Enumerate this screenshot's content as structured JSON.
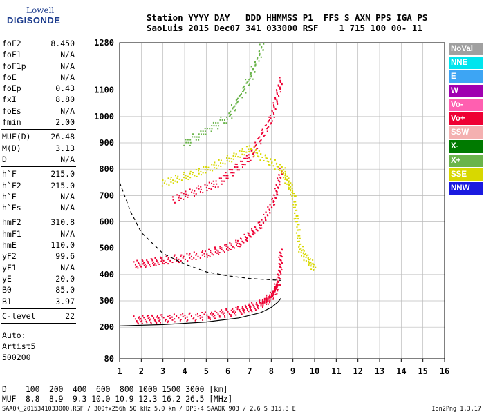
{
  "logo": {
    "line1": "Lowell",
    "line2": "DIGISONDE"
  },
  "header": {
    "line1": "Station YYYY DAY   DDD HHMMSS P1  FFS S AXN PPS IGA PS",
    "line2": "SaoLuis 2015 Dec07 341 033000 RSF    1 715 100 00- 11"
  },
  "params": [
    {
      "label": "foF2",
      "value": "8.450"
    },
    {
      "label": "foF1",
      "value": "N/A"
    },
    {
      "label": "foF1p",
      "value": "N/A"
    },
    {
      "label": "foE",
      "value": "N/A"
    },
    {
      "label": "foEp",
      "value": "0.43"
    },
    {
      "label": "fxI",
      "value": "8.80"
    },
    {
      "label": "foEs",
      "value": "N/A"
    },
    {
      "label": "fmin",
      "value": "2.00"
    },
    {
      "sep": true
    },
    {
      "label": "MUF(D)",
      "value": "26.48"
    },
    {
      "label": "M(D)",
      "value": "3.13"
    },
    {
      "label": "D",
      "value": "N/A"
    },
    {
      "sep": true
    },
    {
      "label": "h`F",
      "value": "215.0"
    },
    {
      "label": "h`F2",
      "value": "215.0"
    },
    {
      "label": "h`E",
      "value": "N/A"
    },
    {
      "label": "h`Es",
      "value": "N/A"
    },
    {
      "sep": true
    },
    {
      "label": "hmF2",
      "value": "310.8"
    },
    {
      "label": "hmF1",
      "value": "N/A"
    },
    {
      "label": "hmE",
      "value": "110.0"
    },
    {
      "label": "yF2",
      "value": "99.6"
    },
    {
      "label": "yF1",
      "value": "N/A"
    },
    {
      "label": "yE",
      "value": "20.0"
    },
    {
      "label": "B0",
      "value": "85.0"
    },
    {
      "label": "B1",
      "value": "3.97"
    },
    {
      "sep": true
    },
    {
      "label": "C-level",
      "value": "22"
    },
    {
      "sep": true
    }
  ],
  "autoscaling": {
    "line1": "Auto:",
    "line2": "Artist5",
    "line3": "500200"
  },
  "legend": [
    {
      "label": "NoVal",
      "color": "#a0a0a0"
    },
    {
      "label": "NNE",
      "color": "#00e5ee"
    },
    {
      "label": "E",
      "color": "#3da5f4"
    },
    {
      "label": "W",
      "color": "#a000b0"
    },
    {
      "label": "Vo-",
      "color": "#ff5fb0"
    },
    {
      "label": "Vo+",
      "color": "#ee0033"
    },
    {
      "label": "SSW",
      "color": "#f4b0b0"
    },
    {
      "label": "X-",
      "color": "#007a00"
    },
    {
      "label": "X+",
      "color": "#6ab44a"
    },
    {
      "label": "SSE",
      "color": "#d8d800"
    },
    {
      "label": "NNW",
      "color": "#1a1ae0"
    }
  ],
  "chart_data": {
    "type": "scatter",
    "xlim": [
      1,
      16
    ],
    "ylim": [
      80,
      1280
    ],
    "x_ticks": [
      1,
      2,
      3,
      4,
      5,
      6,
      7,
      8,
      9,
      10,
      11,
      12,
      13,
      14,
      15,
      16
    ],
    "y_ticks": [
      80,
      200,
      300,
      400,
      500,
      600,
      700,
      800,
      900,
      1000,
      1100,
      1280
    ],
    "grid": true,
    "series": [
      {
        "color_key": "Vo+",
        "trace": [
          [
            1.7,
            230
          ],
          [
            3,
            235
          ],
          [
            5,
            245
          ],
          [
            6.5,
            265
          ],
          [
            7.5,
            290
          ],
          [
            8,
            320
          ],
          [
            8.3,
            370
          ],
          [
            8.45,
            500
          ]
        ]
      },
      {
        "color_key": "Vo+",
        "trace": [
          [
            1.7,
            440
          ],
          [
            3,
            455
          ],
          [
            5,
            480
          ],
          [
            6.5,
            520
          ],
          [
            7.5,
            590
          ],
          [
            8.1,
            680
          ],
          [
            8.45,
            800
          ]
        ]
      },
      {
        "color_key": "Vo+",
        "trace": [
          [
            3.5,
            690
          ],
          [
            5.5,
            750
          ],
          [
            7,
            850
          ],
          [
            8,
            1000
          ],
          [
            8.45,
            1150
          ]
        ]
      },
      {
        "color_key": "X+",
        "trace": [
          [
            4,
            900
          ],
          [
            6,
            1000
          ],
          [
            7,
            1150
          ],
          [
            7.6,
            1280
          ]
        ]
      },
      {
        "color_key": "SSE",
        "trace": [
          [
            3,
            750
          ],
          [
            5,
            800
          ],
          [
            7,
            880
          ],
          [
            8.5,
            800
          ],
          [
            9,
            700
          ],
          [
            9.3,
            500
          ],
          [
            10,
            420
          ]
        ]
      }
    ],
    "model_curves": [
      {
        "style": "solid",
        "x": [
          1,
          3,
          5,
          6.5,
          7.5,
          8,
          8.3,
          8.45
        ],
        "y": [
          205,
          210,
          220,
          235,
          255,
          275,
          295,
          310
        ]
      },
      {
        "style": "dashed",
        "x": [
          1,
          1.5,
          2,
          3,
          4,
          5,
          6,
          7,
          8,
          8.45
        ],
        "y": [
          750,
          640,
          560,
          480,
          440,
          410,
          395,
          385,
          380,
          378
        ]
      }
    ]
  },
  "bottom": {
    "d_row": "D    100  200  400  600  800 1000 1500 3000 [km]",
    "muf_row": "MUF  8.8  8.9  9.3 10.0 10.9 12.3 16.2 26.5 [MHz]"
  },
  "footer": {
    "left": "SAAOK_2015341033000.RSF / 300fx256h 50 kHz 5.0 km / DPS-4 SAAOK 903 / 2.6 S 315.8 E",
    "right": "Ion2Png 1.3.17"
  }
}
